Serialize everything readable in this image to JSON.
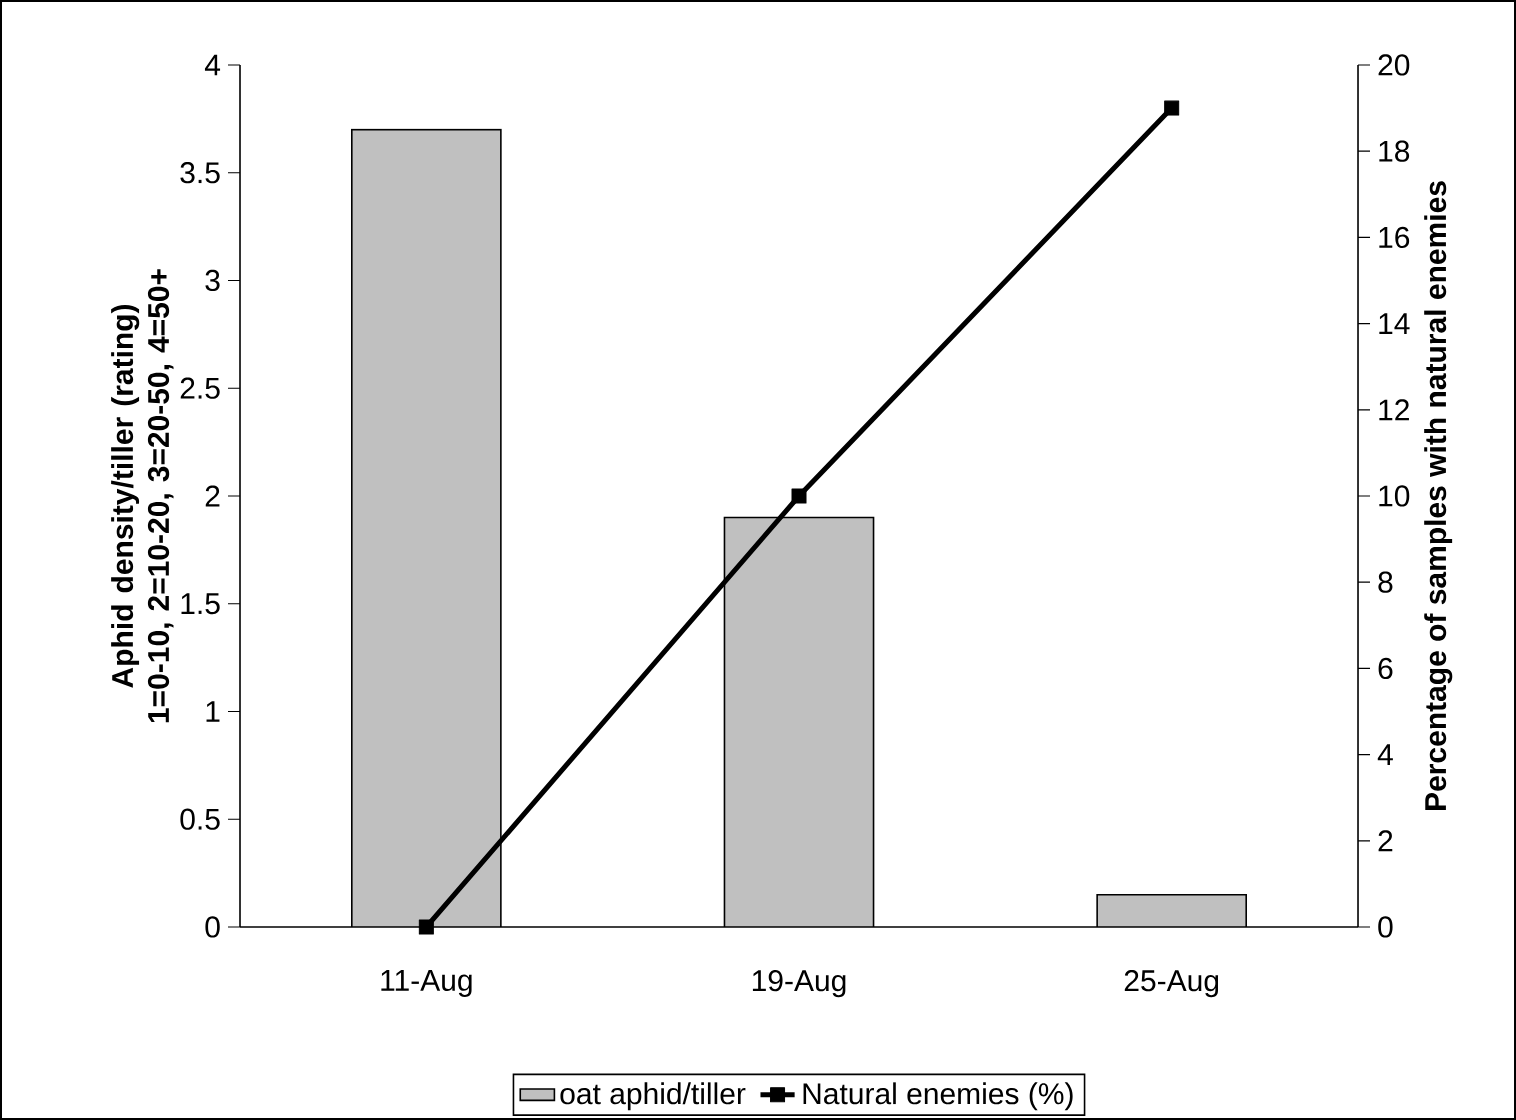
{
  "chart_data": {
    "type": "bar",
    "categories": [
      "11-Aug",
      "19-Aug",
      "25-Aug"
    ],
    "ylabel": "Aphid density/tiller (rating) 1=0-10, 2=10-20, 3=20-50, 4=50+",
    "y2label": "Percentage of samples with natural enemies",
    "series": [
      {
        "name": "oat aphid/tiller",
        "color": "#c0c0c0",
        "values": [
          3.7,
          1.9,
          0.15
        ]
      },
      {
        "name": "Natural enemies (%)",
        "type": "line",
        "axis": "y2",
        "color": "#000000",
        "marker": "square",
        "values": [
          0,
          10,
          19
        ]
      }
    ],
    "ylim": [
      0,
      4
    ],
    "yticks": [
      0,
      0.5,
      1,
      1.5,
      2,
      2.5,
      3,
      3.5,
      4
    ],
    "y2lim": [
      0,
      20
    ],
    "y2ticks": [
      0,
      2,
      4,
      6,
      8,
      10,
      12,
      14,
      16,
      18,
      20
    ],
    "grid": false,
    "legend": "bottom"
  }
}
